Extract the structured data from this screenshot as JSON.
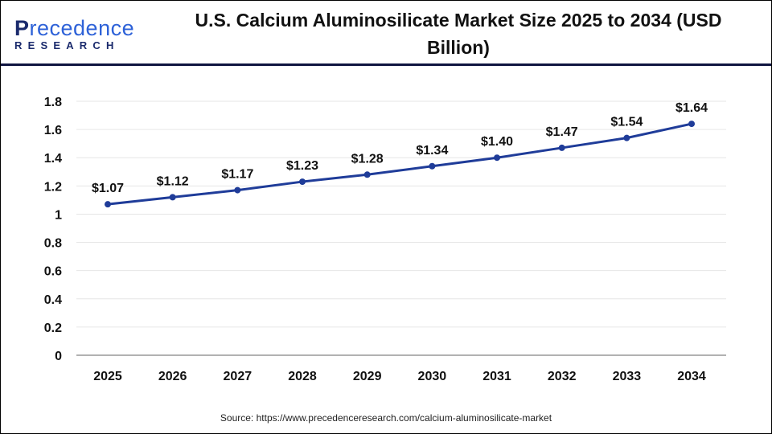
{
  "logo": {
    "line1_a": "P",
    "line1_b": "recedence",
    "line2": "RESEARCH"
  },
  "title": "U.S. Calcium Aluminosilicate Market Size 2025 to 2034 (USD Billion)",
  "source": "Source: https://www.precedenceresearch.com/calcium-aluminosilicate-market",
  "colors": {
    "line": "#1f3c99",
    "grid": "#e6e6e6"
  },
  "chart_data": {
    "type": "line",
    "title": "U.S. Calcium Aluminosilicate Market Size 2025 to 2034 (USD Billion)",
    "xlabel": "",
    "ylabel": "",
    "categories": [
      "2025",
      "2026",
      "2027",
      "2028",
      "2029",
      "2030",
      "2031",
      "2032",
      "2033",
      "2034"
    ],
    "values": [
      1.07,
      1.12,
      1.17,
      1.23,
      1.28,
      1.34,
      1.4,
      1.47,
      1.54,
      1.64
    ],
    "labels": [
      "$1.07",
      "$1.12",
      "$1.17",
      "$1.23",
      "$1.28",
      "$1.34",
      "$1.40",
      "$1.47",
      "$1.54",
      "$1.64"
    ],
    "yticks": [
      "0",
      "0.2",
      "0.4",
      "0.6",
      "0.8",
      "1",
      "1.2",
      "1.4",
      "1.6",
      "1.8"
    ],
    "ylim": [
      0,
      1.8
    ],
    "grid": true,
    "legend": "none"
  }
}
